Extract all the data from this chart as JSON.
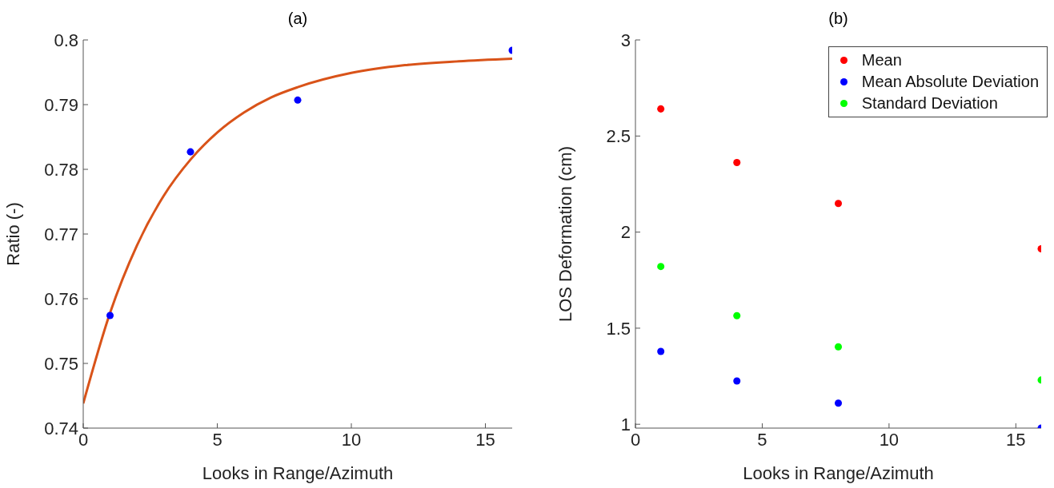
{
  "chart_data": [
    {
      "type": "scatter",
      "title": "(a)",
      "xlabel": "Looks in Range/Azimuth",
      "ylabel": "Ratio (-)",
      "xlim": [
        0,
        16
      ],
      "xticks": [
        0,
        5,
        10,
        15
      ],
      "ylim": [
        0.74,
        0.8
      ],
      "yticks": [
        0.74,
        0.75,
        0.76,
        0.77,
        0.78,
        0.79,
        0.8
      ],
      "marker": "circle",
      "legend": false,
      "grid": false,
      "series": [
        {
          "color": "#0000ff",
          "x": [
            1,
            4,
            8,
            16
          ],
          "values": [
            0.7574,
            0.7827,
            0.7907,
            0.7984
          ]
        },
        {
          "type": "line",
          "marker": "none",
          "color": "#d95319",
          "x": [
            0,
            1,
            2,
            3,
            4,
            5,
            6,
            7,
            8,
            10,
            12,
            14,
            16
          ],
          "values": [
            0.7438,
            0.7578,
            0.7682,
            0.7759,
            0.7815,
            0.7857,
            0.7888,
            0.7911,
            0.7927,
            0.7949,
            0.7961,
            0.7967,
            0.7971
          ]
        }
      ]
    },
    {
      "type": "scatter",
      "title": "(b)",
      "xlabel": "Looks in Range/Azimuth",
      "ylabel": "LOS Deformation (cm)",
      "xlim": [
        0,
        16
      ],
      "xticks": [
        0,
        5,
        10,
        15
      ],
      "ylim": [
        0.98,
        3
      ],
      "yticks": [
        1,
        1.5,
        2,
        2.5,
        3
      ],
      "marker": "circle",
      "legend": "top right",
      "grid": false,
      "series": [
        {
          "name": "Mean",
          "color": "#ff0000",
          "x": [
            1,
            4,
            8,
            16
          ],
          "values": [
            2.641,
            2.362,
            2.149,
            1.913
          ]
        },
        {
          "name": "Mean Absolute Deviation",
          "color": "#0000ff",
          "x": [
            1,
            4,
            8,
            16
          ],
          "values": [
            1.379,
            1.225,
            1.11,
            0.98
          ]
        },
        {
          "name": "Standard Deviation",
          "color": "#00ff00",
          "x": [
            1,
            4,
            8,
            16
          ],
          "values": [
            1.821,
            1.565,
            1.403,
            1.23
          ]
        }
      ]
    }
  ]
}
